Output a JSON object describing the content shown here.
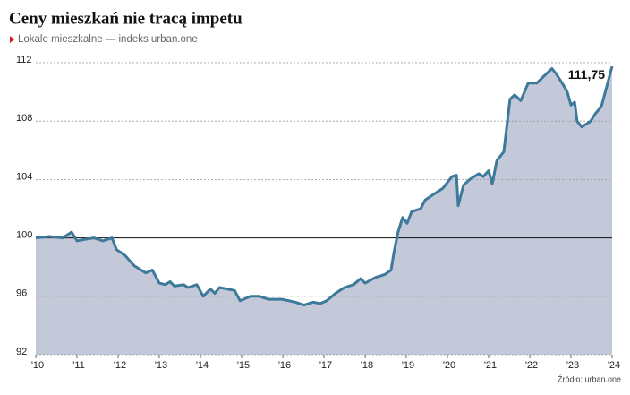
{
  "chart_data": {
    "type": "area",
    "title": "Ceny mieszkań nie tracą impetu",
    "subtitle": "Lokale mieszkalne — indeks urban.one",
    "source": "Źródło: urban.one",
    "annotation": "111,75",
    "reference_line": 100,
    "line_color": "#3d7a9a",
    "fill_color": "#c4c9da",
    "grid": true,
    "xlim": [
      2010,
      2024
    ],
    "xticks": [
      {
        "value": 2010,
        "label": "'10"
      },
      {
        "value": 2011,
        "label": "'11"
      },
      {
        "value": 2012,
        "label": "'12"
      },
      {
        "value": 2013,
        "label": "'13"
      },
      {
        "value": 2014,
        "label": "'14"
      },
      {
        "value": 2015,
        "label": "'15"
      },
      {
        "value": 2016,
        "label": "'16"
      },
      {
        "value": 2017,
        "label": "'17"
      },
      {
        "value": 2018,
        "label": "'18"
      },
      {
        "value": 2019,
        "label": "'19"
      },
      {
        "value": 2020,
        "label": "'20"
      },
      {
        "value": 2021,
        "label": "'21"
      },
      {
        "value": 2022,
        "label": "'22"
      },
      {
        "value": 2023,
        "label": "'23"
      },
      {
        "value": 2024,
        "label": "'24"
      }
    ],
    "ylim": [
      92,
      112
    ],
    "yticks": [
      92,
      96,
      100,
      104,
      108,
      112
    ],
    "x": [
      2010.0,
      2010.33,
      2010.65,
      2010.87,
      2011.0,
      2011.2,
      2011.41,
      2011.63,
      2011.85,
      2011.96,
      2012.17,
      2012.39,
      2012.67,
      2012.83,
      2013.0,
      2013.15,
      2013.26,
      2013.37,
      2013.59,
      2013.7,
      2013.91,
      2014.07,
      2014.24,
      2014.35,
      2014.46,
      2014.83,
      2014.96,
      2015.22,
      2015.43,
      2015.65,
      2015.98,
      2016.3,
      2016.52,
      2016.74,
      2016.91,
      2017.07,
      2017.28,
      2017.5,
      2017.72,
      2017.89,
      2018.0,
      2018.26,
      2018.48,
      2018.63,
      2018.7,
      2018.8,
      2018.91,
      2019.02,
      2019.13,
      2019.35,
      2019.46,
      2019.67,
      2019.89,
      2020.11,
      2020.22,
      2020.26,
      2020.39,
      2020.54,
      2020.76,
      2020.87,
      2021.0,
      2021.09,
      2021.2,
      2021.37,
      2021.52,
      2021.63,
      2021.78,
      2021.96,
      2022.17,
      2022.39,
      2022.54,
      2022.65,
      2022.83,
      2022.91,
      2023.0,
      2023.09,
      2023.15,
      2023.26,
      2023.48,
      2023.59,
      2023.74,
      2024.0
    ],
    "values": [
      100.0,
      100.1,
      100.0,
      100.4,
      99.8,
      99.9,
      100.0,
      99.8,
      100.0,
      99.2,
      98.8,
      98.1,
      97.6,
      97.8,
      96.9,
      96.8,
      97.0,
      96.7,
      96.8,
      96.6,
      96.8,
      96.0,
      96.5,
      96.2,
      96.6,
      96.4,
      95.7,
      96.0,
      96.0,
      95.8,
      95.8,
      95.6,
      95.4,
      95.6,
      95.5,
      95.7,
      96.2,
      96.6,
      96.8,
      97.2,
      96.9,
      97.3,
      97.5,
      97.8,
      99.0,
      100.4,
      101.4,
      101.0,
      101.8,
      102.0,
      102.6,
      103.0,
      103.4,
      104.2,
      104.3,
      102.2,
      103.6,
      104.0,
      104.4,
      104.2,
      104.6,
      103.7,
      105.3,
      105.9,
      109.5,
      109.8,
      109.4,
      110.6,
      110.6,
      111.2,
      111.6,
      111.2,
      110.4,
      110.0,
      109.1,
      109.3,
      108.0,
      107.6,
      108.0,
      108.5,
      109.0,
      111.75
    ]
  }
}
